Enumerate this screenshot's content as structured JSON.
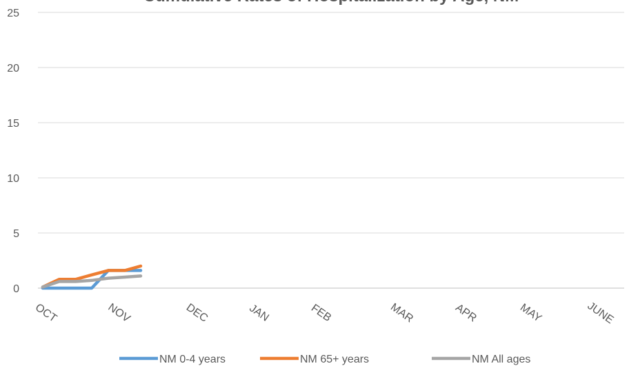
{
  "chart_data": {
    "type": "line",
    "title": "Cumulative Rates of Hospitalization by Age, NM",
    "xlabel": "",
    "ylabel": "",
    "ylim": [
      0,
      25
    ],
    "yticks": [
      0,
      5,
      10,
      15,
      20,
      25
    ],
    "grid": "horizontal",
    "legend_position": "bottom",
    "month_labels": [
      "OCT",
      "NOV",
      "DEC",
      "JAN",
      "FEB",
      "MAR",
      "APR",
      "MAY",
      "JUNE"
    ],
    "series": [
      {
        "name": "NM 0-4 years",
        "color": "#5B9BD5",
        "values": [
          0,
          0,
          0,
          0,
          1.6,
          1.6,
          1.6
        ]
      },
      {
        "name": "NM 65+ years",
        "color": "#ED7D31",
        "values": [
          0.1,
          0.8,
          0.8,
          1.2,
          1.6,
          1.6,
          2.0
        ]
      },
      {
        "name": "NM All ages",
        "color": "#A5A5A5",
        "values": [
          0.1,
          0.6,
          0.6,
          0.7,
          0.9,
          1.0,
          1.1
        ]
      }
    ]
  }
}
